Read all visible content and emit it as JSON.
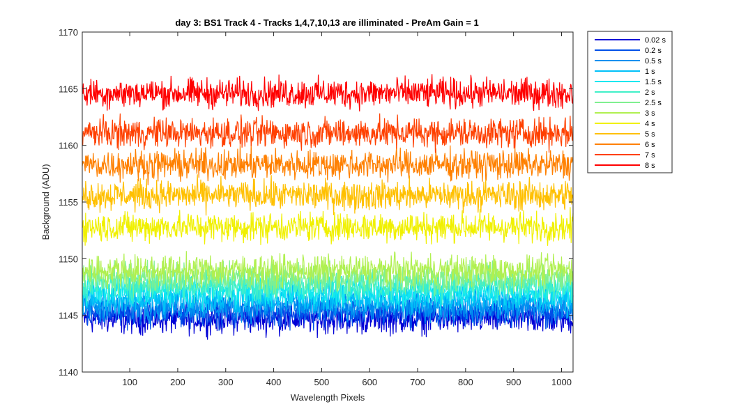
{
  "chart_data": {
    "type": "line",
    "title": "day 3: BS1  Track 4 - Tracks 1,4,7,10,13 are illiminated - PreAm Gain = 1",
    "xlabel": "Wavelength Pixels",
    "ylabel": "Background (ADU)",
    "xlim": [
      1,
      1024
    ],
    "ylim": [
      1140,
      1170
    ],
    "xticks": [
      100,
      200,
      300,
      400,
      500,
      600,
      700,
      800,
      900,
      1000
    ],
    "yticks": [
      1140,
      1145,
      1150,
      1155,
      1160,
      1165,
      1170
    ],
    "grid": false,
    "legend_position": "outside-top-right",
    "points_per_series": 1024,
    "series": [
      {
        "name": "0.02 s",
        "color": "#0000d6",
        "mean": 1144.7,
        "noise_amplitude": 1.0
      },
      {
        "name": "0.2 s",
        "color": "#0050e8",
        "mean": 1145.3,
        "noise_amplitude": 1.0
      },
      {
        "name": "0.5 s",
        "color": "#0090f0",
        "mean": 1145.8,
        "noise_amplitude": 1.0
      },
      {
        "name": "1 s",
        "color": "#00c0f8",
        "mean": 1146.5,
        "noise_amplitude": 1.0
      },
      {
        "name": "1.5 s",
        "color": "#10e8f0",
        "mean": 1147.1,
        "noise_amplitude": 1.0
      },
      {
        "name": "2 s",
        "color": "#40f0c8",
        "mean": 1147.7,
        "noise_amplitude": 1.0
      },
      {
        "name": "2.5 s",
        "color": "#80f090",
        "mean": 1148.3,
        "noise_amplitude": 1.0
      },
      {
        "name": "3 s",
        "color": "#b0f050",
        "mean": 1149.0,
        "noise_amplitude": 1.0
      },
      {
        "name": "4 s",
        "color": "#f0f000",
        "mean": 1152.8,
        "noise_amplitude": 1.0
      },
      {
        "name": "5 s",
        "color": "#ffc000",
        "mean": 1155.6,
        "noise_amplitude": 1.0
      },
      {
        "name": "6 s",
        "color": "#ff8000",
        "mean": 1158.3,
        "noise_amplitude": 1.0
      },
      {
        "name": "7 s",
        "color": "#ff4000",
        "mean": 1161.1,
        "noise_amplitude": 1.0
      },
      {
        "name": "8 s",
        "color": "#ff0000",
        "mean": 1164.6,
        "noise_amplitude": 1.0
      }
    ]
  }
}
